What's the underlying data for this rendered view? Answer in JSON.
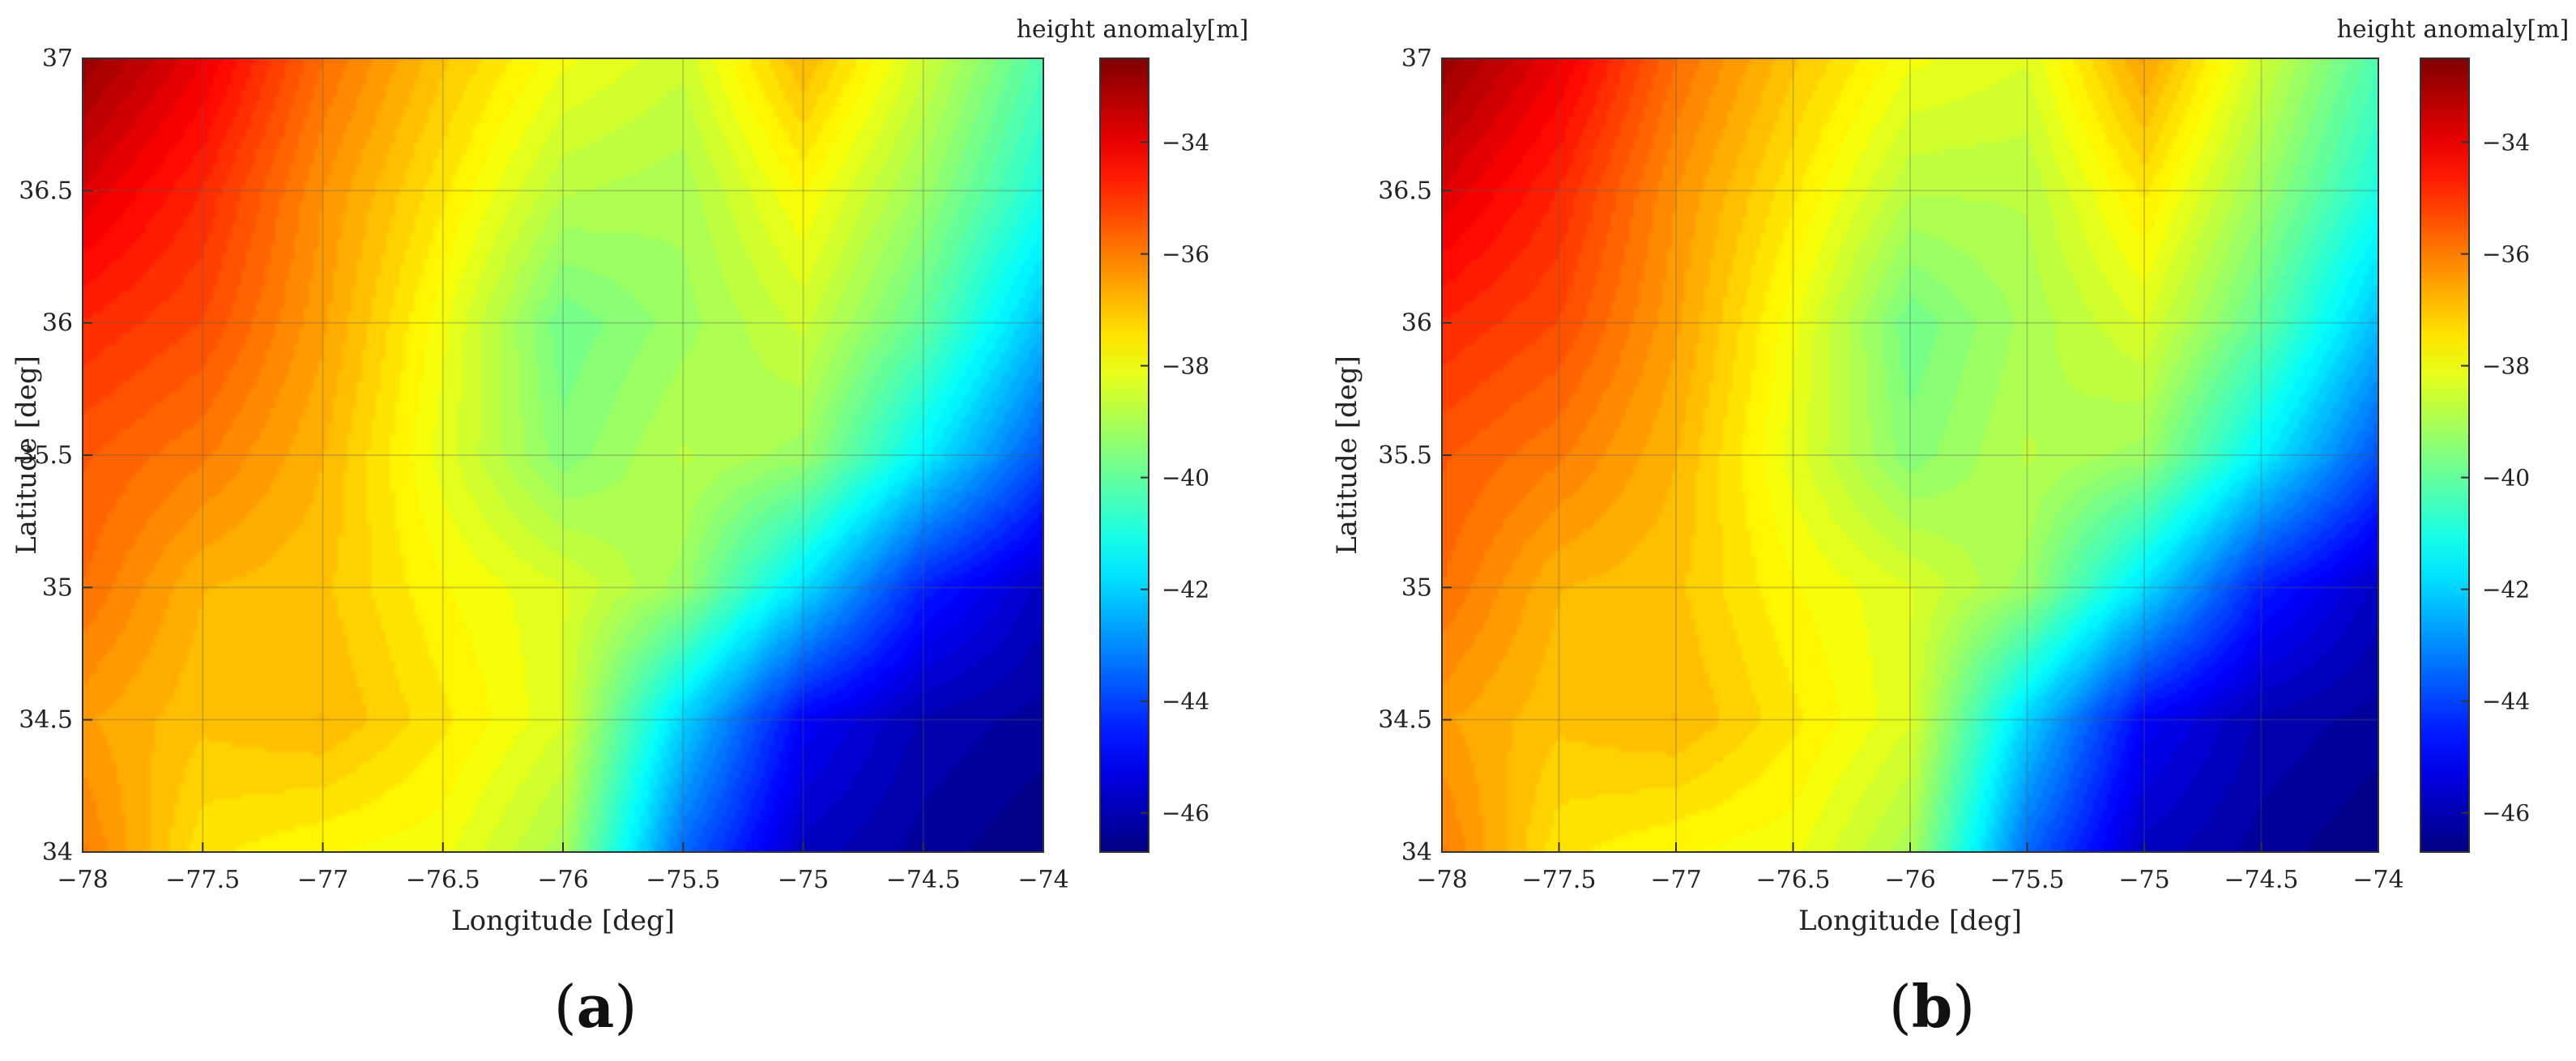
{
  "chart_data": [
    {
      "type": "heatmap",
      "panel_label": "a",
      "xlabel": "Longitude [deg]",
      "ylabel": "Latitude [deg]",
      "colorbar_title": "height anomaly[m]",
      "xlim": [
        -78,
        -74
      ],
      "ylim": [
        34,
        37
      ],
      "clim": [
        -46.7,
        -32.5
      ],
      "x_ticks": [
        "−78",
        "−77.5",
        "−77",
        "−76.5",
        "−76",
        "−75.5",
        "−75",
        "−74.5",
        "−74"
      ],
      "y_ticks": [
        "37",
        "36.5",
        "36",
        "35.5",
        "35",
        "34.5",
        "34"
      ],
      "colorbar_ticks": [
        "−34",
        "−36",
        "−38",
        "−40",
        "−42",
        "−44",
        "−46"
      ],
      "colormap": "jet",
      "grid": true,
      "x": [
        -78,
        -77.5,
        -77,
        -76.5,
        -76,
        -75.5,
        -75,
        -74.5,
        -74
      ],
      "y": [
        37,
        36.5,
        36,
        35.5,
        35,
        34.5,
        34
      ],
      "z": [
        [
          -32.8,
          -34.0,
          -35.8,
          -37.0,
          -38.0,
          -38.5,
          -36.8,
          -38.5,
          -40.3
        ],
        [
          -33.8,
          -34.8,
          -36.3,
          -37.5,
          -38.8,
          -39.0,
          -37.8,
          -39.2,
          -41.0
        ],
        [
          -34.8,
          -35.3,
          -36.5,
          -38.0,
          -39.8,
          -39.2,
          -38.5,
          -40.0,
          -42.3
        ],
        [
          -35.5,
          -36.0,
          -36.8,
          -38.2,
          -39.5,
          -38.8,
          -39.2,
          -41.5,
          -43.8
        ],
        [
          -35.8,
          -36.8,
          -37.0,
          -37.8,
          -38.3,
          -39.2,
          -41.8,
          -44.5,
          -45.8
        ],
        [
          -36.5,
          -37.0,
          -36.8,
          -37.5,
          -38.3,
          -42.0,
          -45.0,
          -46.0,
          -46.3
        ],
        [
          -36.0,
          -37.5,
          -37.8,
          -38.0,
          -39.0,
          -43.5,
          -45.8,
          -46.3,
          -46.7
        ]
      ]
    },
    {
      "type": "heatmap",
      "panel_label": "b",
      "xlabel": "Longitude [deg]",
      "ylabel": "Latitude [deg]",
      "colorbar_title": "height anomaly[m]",
      "xlim": [
        -78,
        -74
      ],
      "ylim": [
        34,
        37
      ],
      "clim": [
        -46.7,
        -32.5
      ],
      "x_ticks": [
        "−78",
        "−77.5",
        "−77",
        "−76.5",
        "−76",
        "−75.5",
        "−75",
        "−74.5",
        "−74"
      ],
      "y_ticks": [
        "37",
        "36.5",
        "36",
        "35.5",
        "35",
        "34.5",
        "34"
      ],
      "colorbar_ticks": [
        "−34",
        "−36",
        "−38",
        "−40",
        "−42",
        "−44",
        "−46"
      ],
      "colormap": "jet",
      "grid": true,
      "x": [
        -78,
        -77.5,
        -77,
        -76.5,
        -76,
        -75.5,
        -75,
        -74.5,
        -74
      ],
      "y": [
        37,
        36.5,
        36,
        35.5,
        35,
        34.5,
        34
      ],
      "z": [
        [
          -32.8,
          -34.0,
          -35.8,
          -37.0,
          -38.0,
          -38.3,
          -36.5,
          -38.5,
          -40.3
        ],
        [
          -33.8,
          -34.8,
          -36.3,
          -37.5,
          -38.8,
          -38.8,
          -37.5,
          -39.2,
          -41.0
        ],
        [
          -34.8,
          -35.3,
          -36.5,
          -38.0,
          -39.8,
          -39.0,
          -38.3,
          -40.0,
          -42.3
        ],
        [
          -35.5,
          -36.0,
          -36.8,
          -38.2,
          -39.5,
          -38.8,
          -39.2,
          -41.5,
          -43.8
        ],
        [
          -35.8,
          -36.8,
          -37.0,
          -37.8,
          -38.3,
          -39.2,
          -41.8,
          -44.5,
          -45.8
        ],
        [
          -36.5,
          -37.0,
          -36.8,
          -37.5,
          -38.3,
          -42.0,
          -45.0,
          -46.0,
          -46.3
        ],
        [
          -36.0,
          -37.5,
          -37.8,
          -38.0,
          -39.0,
          -43.5,
          -45.8,
          -46.3,
          -46.7
        ]
      ]
    }
  ]
}
